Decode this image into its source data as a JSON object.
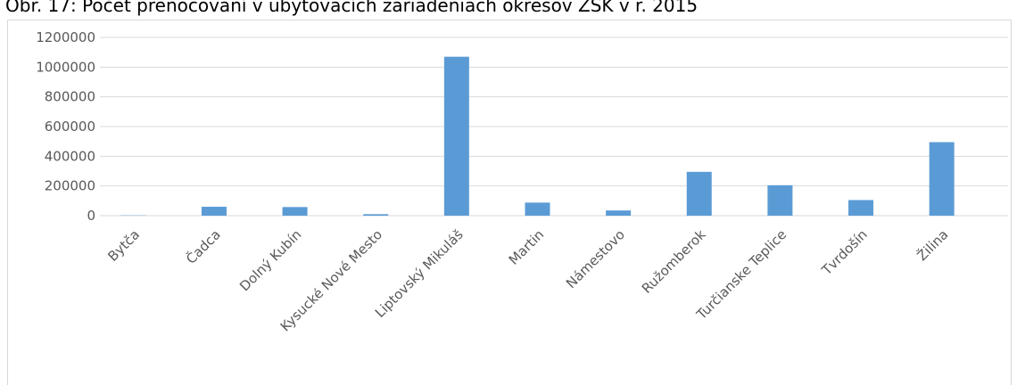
{
  "chart_data": {
    "type": "bar",
    "title": "Obr. 17: Počet prenocovaní v ubytovacích zariadeniach okresov ŽSK v r. 2015",
    "categories": [
      "Bytča",
      "Čadca",
      "Dolný Kubín",
      "Kysucké Nové Mesto",
      "Liptovský Mikuláš",
      "Martin",
      "Námestovo",
      "Ružomberok",
      "Turčianske Teplice",
      "Tvrdošín",
      "Žilina"
    ],
    "values": [
      2000,
      60000,
      58000,
      10000,
      1070000,
      88000,
      35000,
      295000,
      205000,
      105000,
      495000
    ],
    "color": "#5b9bd5",
    "ylim": [
      0,
      1200000
    ],
    "yticks": [
      0,
      200000,
      400000,
      600000,
      800000,
      1000000,
      1200000
    ],
    "grid": true
  }
}
